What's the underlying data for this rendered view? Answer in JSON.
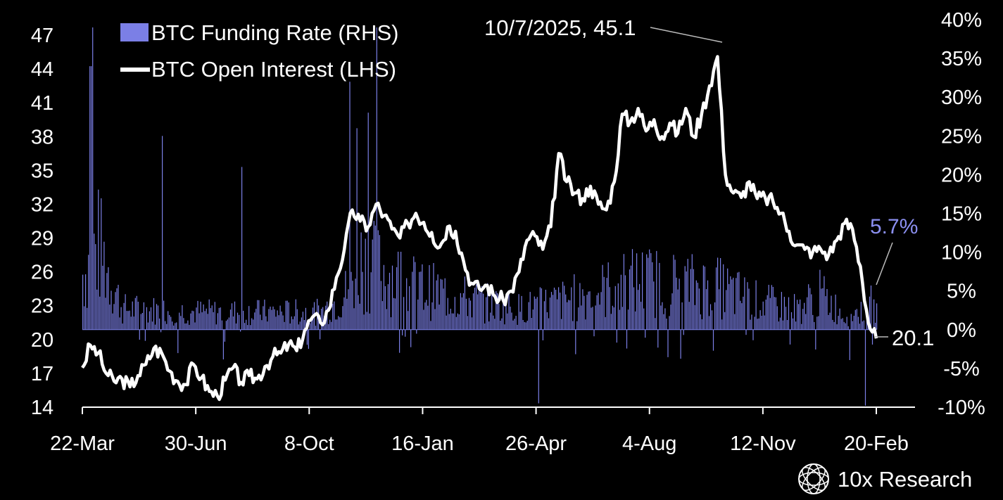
{
  "chart_data": {
    "type": "bar+line",
    "x_tick_labels": [
      "22-Mar",
      "30-Jun",
      "8-Oct",
      "16-Jan",
      "26-Apr",
      "4-Aug",
      "12-Nov",
      "20-Feb"
    ],
    "left_axis": {
      "ticks": [
        14,
        17,
        20,
        23,
        26,
        29,
        32,
        35,
        38,
        41,
        44,
        47
      ],
      "ylim": [
        14,
        47
      ]
    },
    "right_axis": {
      "ticks": [
        "-10%",
        "-5%",
        "0%",
        "5%",
        "10%",
        "15%",
        "20%",
        "25%",
        "30%",
        "35%",
        "40%"
      ],
      "ylim": [
        -10,
        40
      ]
    },
    "legend": {
      "placement": "top-left",
      "bar_color": "#7b7fe6",
      "line_color": "#ffffff"
    },
    "series": [
      {
        "name": "BTC Open Interest (LHS)",
        "kind": "line",
        "axis": "left",
        "color": "#ffffff",
        "x": [
          0,
          0.01,
          0.02,
          0.03,
          0.04,
          0.05,
          0.06,
          0.07,
          0.08,
          0.09,
          0.1,
          0.11,
          0.12,
          0.13,
          0.14,
          0.15,
          0.16,
          0.17,
          0.18,
          0.19,
          0.2,
          0.21,
          0.22,
          0.23,
          0.24,
          0.25,
          0.26,
          0.27,
          0.28,
          0.29,
          0.3,
          0.31,
          0.32,
          0.33,
          0.34,
          0.35,
          0.36,
          0.37,
          0.38,
          0.39,
          0.4,
          0.41,
          0.42,
          0.43,
          0.44,
          0.45,
          0.46,
          0.47,
          0.48,
          0.49,
          0.5,
          0.51,
          0.52,
          0.53,
          0.54,
          0.55,
          0.56,
          0.57,
          0.58,
          0.59,
          0.6,
          0.61,
          0.62,
          0.63,
          0.64,
          0.65,
          0.66,
          0.67,
          0.68,
          0.69,
          0.7,
          0.71,
          0.72,
          0.73,
          0.74,
          0.75,
          0.76,
          0.77,
          0.78,
          0.79,
          0.8,
          0.81,
          0.82,
          0.83,
          0.84,
          0.85,
          0.86,
          0.87,
          0.88,
          0.89,
          0.9,
          0.91,
          0.92,
          0.93,
          0.94,
          0.95,
          0.96,
          0.97,
          0.98,
          0.99,
          1.0
        ],
        "values": [
          17.5,
          19.5,
          18.8,
          17.0,
          16.3,
          16.5,
          15.8,
          16.8,
          17.8,
          19.2,
          18.8,
          17.2,
          16.3,
          16.0,
          17.8,
          16.6,
          15.4,
          15.0,
          16.4,
          17.5,
          16.2,
          16.8,
          16.5,
          17.6,
          18.5,
          18.8,
          19.6,
          19.0,
          20.8,
          22.0,
          21.5,
          22.6,
          25.5,
          28.0,
          31.5,
          30.5,
          30.0,
          32.0,
          31.0,
          29.8,
          29.0,
          30.3,
          31.2,
          30.4,
          29.5,
          28.2,
          30.0,
          29.6,
          27.0,
          25.0,
          24.5,
          24.8,
          23.8,
          23.5,
          24.3,
          26.0,
          28.8,
          29.2,
          28.0,
          30.0,
          36.5,
          34.0,
          33.0,
          32.5,
          33.6,
          32.0,
          31.5,
          34.0,
          40.0,
          39.3,
          40.5,
          38.5,
          39.5,
          38.0,
          39.2,
          38.3,
          40.5,
          38.0,
          40.0,
          42.5,
          45.1,
          34.6,
          33.0,
          32.6,
          34.0,
          32.5,
          32.6,
          32.2,
          31.2,
          29.6,
          28.4,
          28.0,
          27.8,
          28.0,
          27.5,
          28.8,
          30.3,
          29.8,
          26.5,
          21.5,
          20.1
        ]
      },
      {
        "name": "BTC Funding Rate (RHS)",
        "kind": "bar",
        "axis": "right",
        "color": "#7b7fe6",
        "note": "daily values, percent"
      }
    ],
    "annotations": {
      "peak_label": "10/7/2025, 45.1",
      "last_funding": "5.7%",
      "last_oi": "20.1"
    }
  },
  "branding": {
    "label": "10x Research",
    "icon": "globe-logo-icon"
  }
}
